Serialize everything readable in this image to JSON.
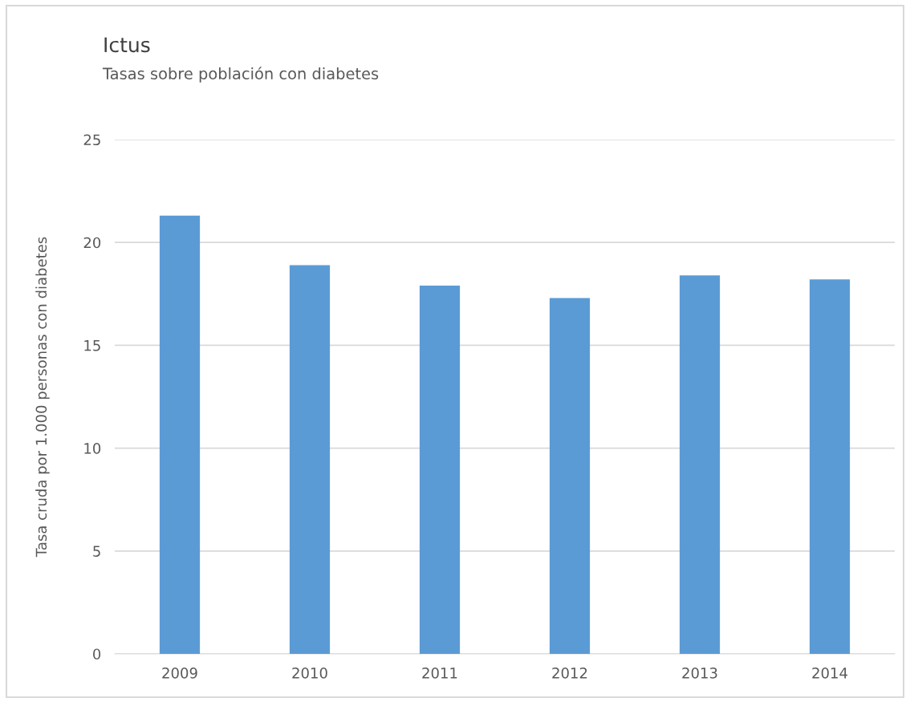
{
  "chart_data": {
    "type": "bar",
    "title": "Ictus",
    "subtitle": "Tasas sobre población con diabetes",
    "ylabel": "Tasa cruda por 1.000 personas con diabetes",
    "categories": [
      "2009",
      "2010",
      "2011",
      "2012",
      "2013",
      "2014"
    ],
    "values": [
      21.3,
      18.9,
      17.9,
      17.3,
      18.4,
      18.2
    ],
    "color": "#5b9bd5",
    "ylim": [
      0,
      25
    ],
    "yticks": [
      0,
      5,
      10,
      15,
      20,
      25
    ],
    "grid": "y",
    "legend": false
  }
}
